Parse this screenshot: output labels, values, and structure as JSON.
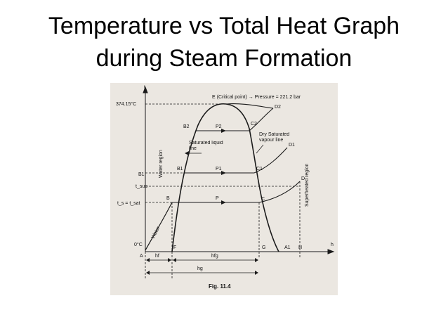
{
  "slide": {
    "title_line1": "Temperature vs Total Heat Graph",
    "title_line2": "during Steam Formation"
  },
  "diagram": {
    "y_axis_symbol": "t",
    "x_axis_symbol": "h",
    "critical_temp": "374.15°C",
    "critical_point": "E (Critical point) → Pressure = 221.2 bar",
    "t_sup": "t_sup",
    "t_sat": "t_s = t_sat",
    "zero_c": "0°C",
    "points": {
      "A": "A",
      "B": "B",
      "B1": "B1",
      "B2": "B2",
      "B1_axis": "B1",
      "C": "C",
      "C1": "C1",
      "C2": "C2",
      "D": "D",
      "D1": "D1",
      "D2": "D2",
      "F": "F",
      "G": "G",
      "A1": "A1",
      "H": "H",
      "P": "P",
      "P1": "P1",
      "P2": "P2"
    },
    "regions": {
      "water_region": "Water region",
      "water": "Water",
      "superheated_region": "Superheated region",
      "saturated_liquid_line": "Saturated liquid line",
      "dry_saturated_vapour_line": "Dry Saturated vapour line"
    },
    "enthalpy": {
      "hf": "hf",
      "hfg": "hfg",
      "hg": "hg"
    },
    "figure_caption": "Fig. 11.4",
    "colors": {
      "paper": "#ebe7e1",
      "ink": "#1a1a1a"
    }
  }
}
